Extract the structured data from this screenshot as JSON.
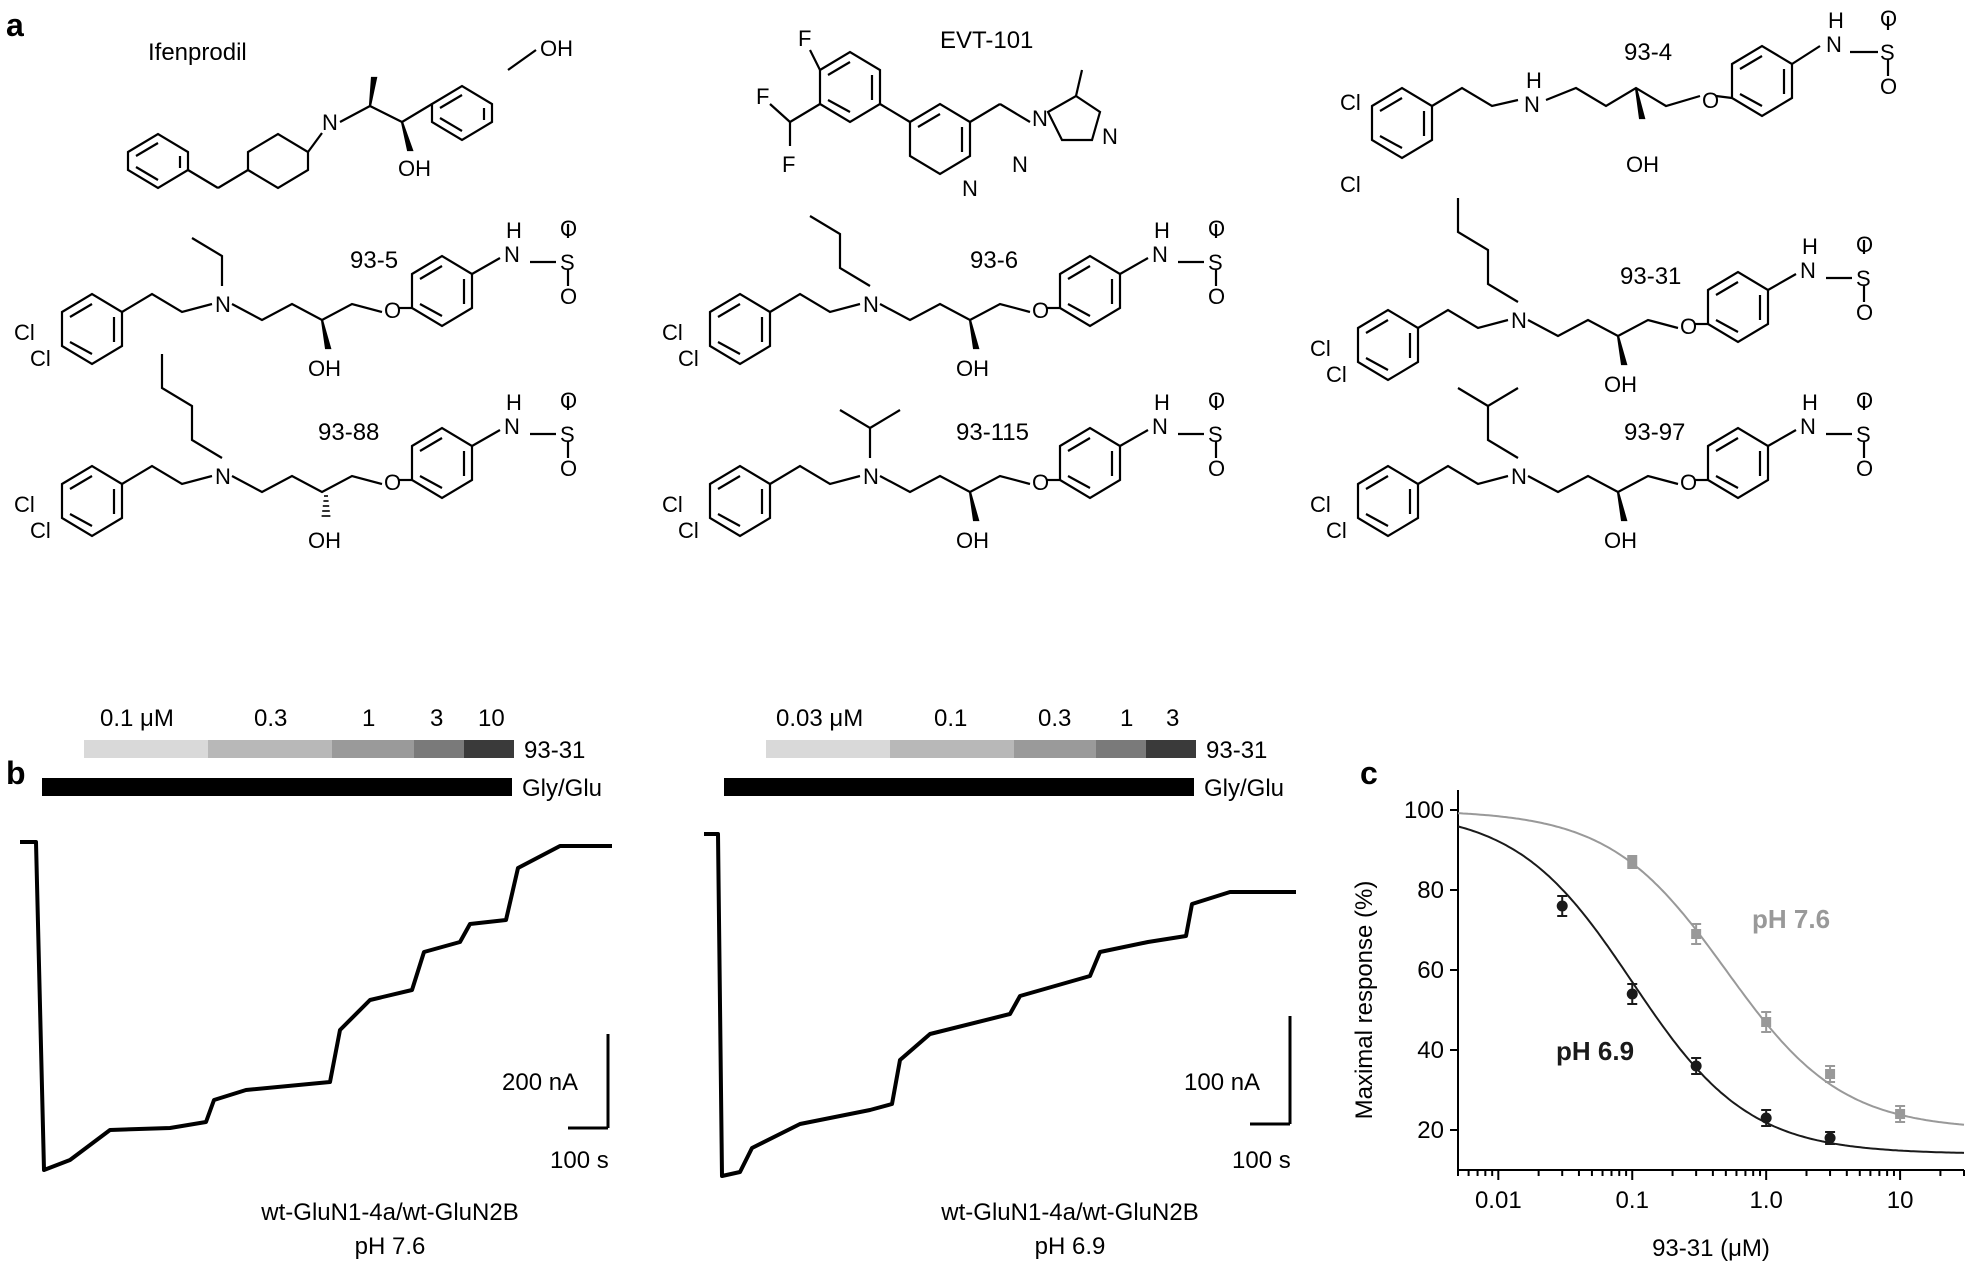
{
  "figure": {
    "panel_a": {
      "label": "a",
      "compounds": [
        {
          "name": "Ifenprodil",
          "atoms": [
            "N",
            "OH",
            "OH"
          ]
        },
        {
          "name": "EVT-101",
          "atoms": [
            "F",
            "F",
            "F",
            "N",
            "N",
            "N",
            "N"
          ]
        },
        {
          "name": "93-4",
          "atoms": [
            "Cl",
            "Cl",
            "H",
            "N",
            "OH",
            "O",
            "H",
            "N",
            "S",
            "O",
            "O"
          ]
        },
        {
          "name": "93-5",
          "atoms": [
            "Cl",
            "Cl",
            "N",
            "OH",
            "O",
            "H",
            "N",
            "S",
            "O",
            "O"
          ]
        },
        {
          "name": "93-6",
          "atoms": [
            "Cl",
            "Cl",
            "N",
            "OH",
            "O",
            "H",
            "N",
            "S",
            "O",
            "O"
          ]
        },
        {
          "name": "93-31",
          "atoms": [
            "Cl",
            "Cl",
            "N",
            "OH",
            "O",
            "H",
            "N",
            "S",
            "O",
            "O"
          ]
        },
        {
          "name": "93-88",
          "atoms": [
            "Cl",
            "Cl",
            "N",
            "OH",
            "O",
            "H",
            "N",
            "S",
            "O",
            "O"
          ]
        },
        {
          "name": "93-115",
          "atoms": [
            "Cl",
            "Cl",
            "N",
            "OH",
            "O",
            "H",
            "N",
            "S",
            "O",
            "O"
          ]
        },
        {
          "name": "93-97",
          "atoms": [
            "Cl",
            "Cl",
            "N",
            "OH",
            "O",
            "H",
            "N",
            "S",
            "O",
            "O"
          ]
        }
      ]
    },
    "panel_b": {
      "label": "b",
      "recordings": [
        {
          "concentrations": [
            "0.1 μM",
            "0.3",
            "1",
            "3",
            "10"
          ],
          "compound_label": "93-31",
          "agonist_label": "Gly/Glu",
          "scale_current": "200 nA",
          "scale_time": "100 s",
          "caption_line1": "wt-GluN1-4a/wt-GluN2B",
          "caption_line2": "pH 7.6"
        },
        {
          "concentrations": [
            "0.03 μM",
            "0.1",
            "0.3",
            "1",
            "3"
          ],
          "compound_label": "93-31",
          "agonist_label": "Gly/Glu",
          "scale_current": "100 nA",
          "scale_time": "100 s",
          "caption_line1": "wt-GluN1-4a/wt-GluN2B",
          "caption_line2": "pH 6.9"
        }
      ],
      "bar_shades": [
        "#d9d9d9",
        "#b8b8b8",
        "#9a9a9a",
        "#7a7a7a",
        "#3a3a3a"
      ]
    },
    "panel_c": {
      "label": "c"
    }
  },
  "chart_data": {
    "type": "scatter",
    "xlabel": "93-31 (μM)",
    "ylabel": "Maximal response (%)",
    "x_scale": "log",
    "xlim": [
      0.005,
      30
    ],
    "ylim": [
      10,
      105
    ],
    "x_tick_labels": [
      "0.01",
      "0.1",
      "1.0",
      "10"
    ],
    "y_tick_labels": [
      "20",
      "40",
      "60",
      "80",
      "100"
    ],
    "series": [
      {
        "name": "pH 7.6",
        "color": "#999999",
        "x": [
          0.1,
          0.3,
          1,
          3,
          10
        ],
        "y": [
          87,
          69,
          47,
          34,
          24
        ],
        "error": [
          1.5,
          2.5,
          2.5,
          2,
          2
        ],
        "fit": {
          "top": 100,
          "bottom": 20,
          "ic50": 0.5,
          "hill": 1
        }
      },
      {
        "name": "pH 6.9",
        "color": "#1a1a1a",
        "x": [
          0.03,
          0.1,
          0.3,
          1,
          3
        ],
        "y": [
          76,
          54,
          36,
          23,
          18
        ],
        "error": [
          2.5,
          2.5,
          2,
          2,
          1.5
        ],
        "fit": {
          "top": 100,
          "bottom": 14,
          "ic50": 0.1,
          "hill": 1
        }
      }
    ]
  }
}
